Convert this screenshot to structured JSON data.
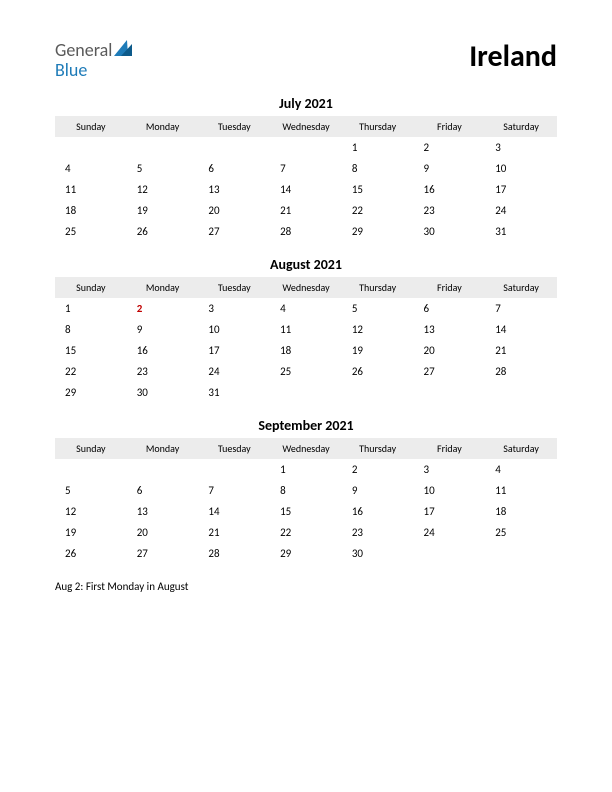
{
  "logo": {
    "general": "General",
    "blue": "Blue",
    "triangle_color": "#1e7bb8"
  },
  "title": "Ireland",
  "dayHeaders": [
    "Sunday",
    "Monday",
    "Tuesday",
    "Wednesday",
    "Thursday",
    "Friday",
    "Saturday"
  ],
  "holiday_color": "#c00000",
  "header_bg": "#ececec",
  "months": [
    {
      "title": "July 2021",
      "weeks": [
        [
          "",
          "",
          "",
          "",
          "1",
          "2",
          "3"
        ],
        [
          "4",
          "5",
          "6",
          "7",
          "8",
          "9",
          "10"
        ],
        [
          "11",
          "12",
          "13",
          "14",
          "15",
          "16",
          "17"
        ],
        [
          "18",
          "19",
          "20",
          "21",
          "22",
          "23",
          "24"
        ],
        [
          "25",
          "26",
          "27",
          "28",
          "29",
          "30",
          "31"
        ]
      ],
      "holidays": []
    },
    {
      "title": "August 2021",
      "weeks": [
        [
          "1",
          "2",
          "3",
          "4",
          "5",
          "6",
          "7"
        ],
        [
          "8",
          "9",
          "10",
          "11",
          "12",
          "13",
          "14"
        ],
        [
          "15",
          "16",
          "17",
          "18",
          "19",
          "20",
          "21"
        ],
        [
          "22",
          "23",
          "24",
          "25",
          "26",
          "27",
          "28"
        ],
        [
          "29",
          "30",
          "31",
          "",
          "",
          "",
          ""
        ]
      ],
      "holidays": [
        "2"
      ]
    },
    {
      "title": "September 2021",
      "weeks": [
        [
          "",
          "",
          "",
          "1",
          "2",
          "3",
          "4"
        ],
        [
          "5",
          "6",
          "7",
          "8",
          "9",
          "10",
          "11"
        ],
        [
          "12",
          "13",
          "14",
          "15",
          "16",
          "17",
          "18"
        ],
        [
          "19",
          "20",
          "21",
          "22",
          "23",
          "24",
          "25"
        ],
        [
          "26",
          "27",
          "28",
          "29",
          "30",
          "",
          ""
        ]
      ],
      "holidays": []
    }
  ],
  "note": "Aug 2: First Monday in August"
}
